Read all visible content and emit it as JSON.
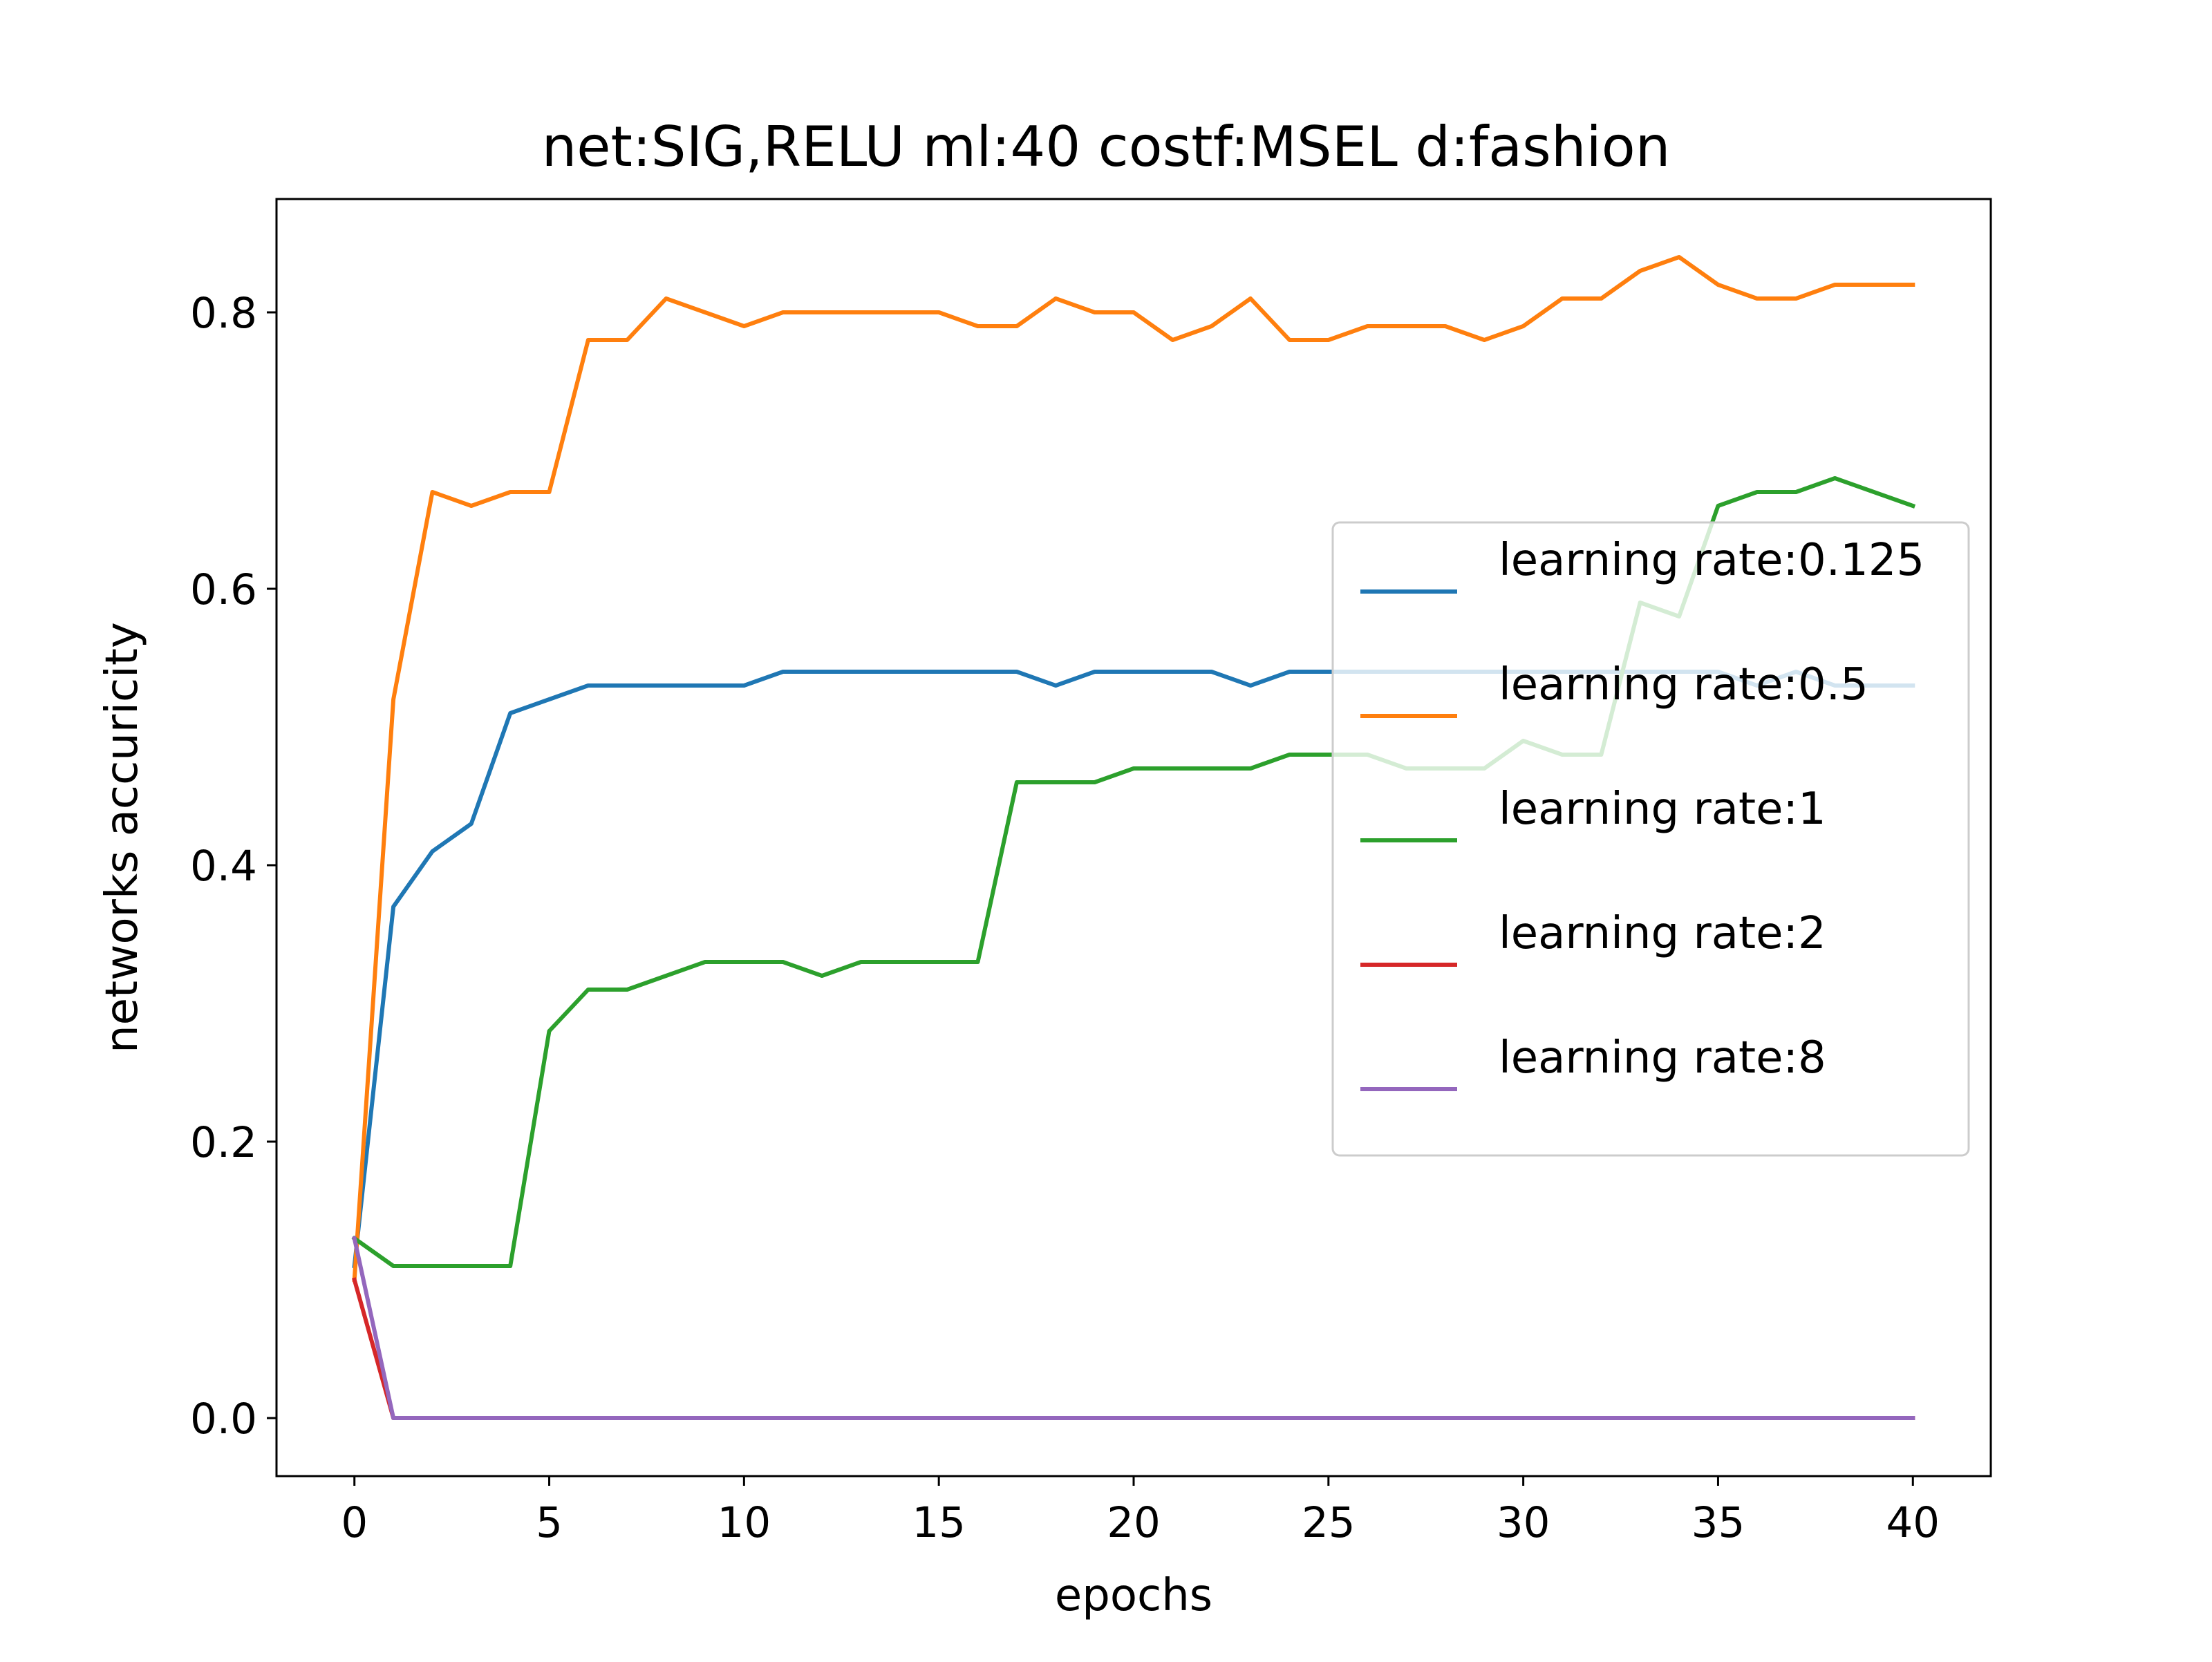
{
  "chart_data": {
    "type": "line",
    "title": "net:SIG,RELU ml:40 costf:MSEL d:fashion",
    "xlabel": "epochs",
    "ylabel": "networks accuricity",
    "xlim": [
      -2,
      42
    ],
    "ylim": [
      -0.042,
      0.882
    ],
    "xticks": [
      0,
      5,
      10,
      15,
      20,
      25,
      30,
      35,
      40
    ],
    "yticks": [
      0.0,
      0.2,
      0.4,
      0.6,
      0.8
    ],
    "xtick_labels": [
      "0",
      "5",
      "10",
      "15",
      "20",
      "25",
      "30",
      "35",
      "40"
    ],
    "ytick_labels": [
      "0.0",
      "0.2",
      "0.4",
      "0.6",
      "0.8"
    ],
    "grid": false,
    "legend_position": "center-right",
    "x": [
      0,
      1,
      2,
      3,
      4,
      5,
      6,
      7,
      8,
      9,
      10,
      11,
      12,
      13,
      14,
      15,
      16,
      17,
      18,
      19,
      20,
      21,
      22,
      23,
      24,
      25,
      26,
      27,
      28,
      29,
      30,
      31,
      32,
      33,
      34,
      35,
      36,
      37,
      38,
      39,
      40
    ],
    "series": [
      {
        "name": "learning rate:0.125",
        "color": "#1f77b4",
        "values": [
          0.11,
          0.37,
          0.41,
          0.43,
          0.51,
          0.52,
          0.53,
          0.53,
          0.53,
          0.53,
          0.53,
          0.54,
          0.54,
          0.54,
          0.54,
          0.54,
          0.54,
          0.54,
          0.53,
          0.54,
          0.54,
          0.54,
          0.54,
          0.53,
          0.54,
          0.54,
          0.54,
          0.54,
          0.54,
          0.54,
          0.54,
          0.54,
          0.54,
          0.54,
          0.54,
          0.54,
          0.53,
          0.54,
          0.53,
          0.53,
          0.53
        ]
      },
      {
        "name": "learning rate:0.5",
        "color": "#ff7f0e",
        "values": [
          0.1,
          0.52,
          0.67,
          0.66,
          0.67,
          0.67,
          0.78,
          0.78,
          0.81,
          0.8,
          0.79,
          0.8,
          0.8,
          0.8,
          0.8,
          0.8,
          0.79,
          0.79,
          0.81,
          0.8,
          0.8,
          0.78,
          0.79,
          0.81,
          0.78,
          0.78,
          0.79,
          0.79,
          0.79,
          0.78,
          0.79,
          0.81,
          0.81,
          0.83,
          0.84,
          0.82,
          0.81,
          0.81,
          0.82,
          0.82,
          0.82
        ]
      },
      {
        "name": "learning rate:1",
        "color": "#2ca02c",
        "values": [
          0.13,
          0.11,
          0.11,
          0.11,
          0.11,
          0.28,
          0.31,
          0.31,
          0.32,
          0.33,
          0.33,
          0.33,
          0.32,
          0.33,
          0.33,
          0.33,
          0.33,
          0.46,
          0.46,
          0.46,
          0.47,
          0.47,
          0.47,
          0.47,
          0.48,
          0.48,
          0.48,
          0.47,
          0.47,
          0.47,
          0.49,
          0.48,
          0.48,
          0.59,
          0.58,
          0.66,
          0.67,
          0.67,
          0.68,
          0.67,
          0.66
        ]
      },
      {
        "name": "learning rate:2",
        "color": "#d62728",
        "values": [
          0.1,
          0,
          0,
          0,
          0,
          0,
          0,
          0,
          0,
          0,
          0,
          0,
          0,
          0,
          0,
          0,
          0,
          0,
          0,
          0,
          0,
          0,
          0,
          0,
          0,
          0,
          0,
          0,
          0,
          0,
          0,
          0,
          0,
          0,
          0,
          0,
          0,
          0,
          0,
          0,
          0
        ]
      },
      {
        "name": "learning rate:8",
        "color": "#9467bd",
        "values": [
          0.13,
          0,
          0,
          0,
          0,
          0,
          0,
          0,
          0,
          0,
          0,
          0,
          0,
          0,
          0,
          0,
          0,
          0,
          0,
          0,
          0,
          0,
          0,
          0,
          0,
          0,
          0,
          0,
          0,
          0,
          0,
          0,
          0,
          0,
          0,
          0,
          0,
          0,
          0,
          0,
          0
        ]
      }
    ]
  }
}
